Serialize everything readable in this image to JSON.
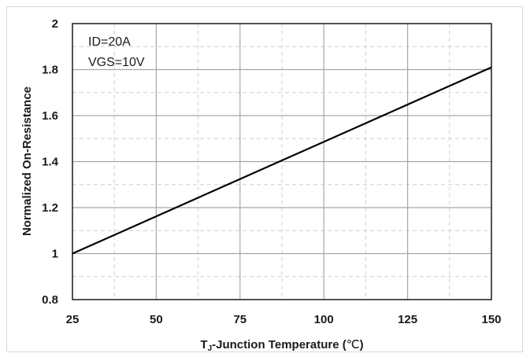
{
  "chart_data": {
    "type": "line",
    "title": "",
    "xlabel": {
      "main": "T",
      "subscript": "J",
      "rest": "-Junction Temperature (",
      "unit": "℃",
      "close": ")"
    },
    "ylabel": "Normalized On-Resistance",
    "xlim": [
      25,
      150
    ],
    "ylim": [
      0.8,
      2
    ],
    "x_ticks": [
      "25",
      "50",
      "75",
      "100",
      "125",
      "150"
    ],
    "y_ticks": [
      "0.8",
      "1",
      "1.2",
      "1.4",
      "1.6",
      "1.8",
      "2"
    ],
    "annotations": [
      "ID=20A",
      "VGS=10V"
    ],
    "grid": "major solid, minor dashed",
    "series": [
      {
        "x": [
          25,
          150
        ],
        "y": [
          1.0,
          1.81
        ]
      }
    ],
    "line_color": "#000000",
    "grid_color": "#a6a6a6"
  }
}
